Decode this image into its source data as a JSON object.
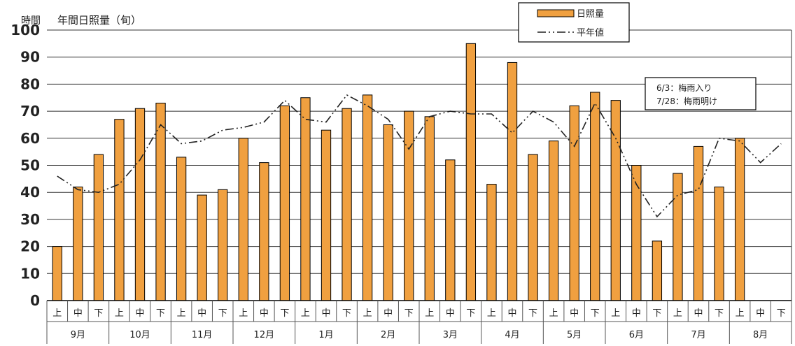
{
  "chart_data": {
    "type": "bar",
    "title": "年間日照量（旬）",
    "ylabel": "時間",
    "ylim": [
      0,
      100
    ],
    "yticks": [
      0,
      10,
      20,
      30,
      40,
      50,
      60,
      70,
      80,
      90,
      100
    ],
    "grid": true,
    "legend_position": "top-right",
    "subcategories": [
      "上",
      "中",
      "下",
      "上",
      "中",
      "下",
      "上",
      "中",
      "下",
      "上",
      "中",
      "下",
      "上",
      "中",
      "下",
      "上",
      "中",
      "下",
      "上",
      "中",
      "下",
      "上",
      "中",
      "下",
      "上",
      "中",
      "下",
      "上",
      "中",
      "下",
      "上",
      "中",
      "下",
      "上",
      "中",
      "下"
    ],
    "months": [
      "9月",
      "10月",
      "11月",
      "12月",
      "1月",
      "2月",
      "3月",
      "4月",
      "5月",
      "6月",
      "7月",
      "8月"
    ],
    "series": [
      {
        "name": "日照量",
        "type": "bar",
        "color": "#F0A040",
        "values": [
          20,
          42,
          54,
          67,
          71,
          73,
          53,
          39,
          41,
          60,
          51,
          72,
          75,
          63,
          71,
          76,
          65,
          70,
          68,
          52,
          95,
          43,
          88,
          54,
          59,
          72,
          77,
          74,
          50,
          22,
          47,
          57,
          42,
          60,
          null,
          null
        ]
      },
      {
        "name": "平年値",
        "type": "line",
        "color": "#222222",
        "values": [
          46,
          41,
          40,
          43,
          52,
          65,
          58,
          59,
          63,
          64,
          66,
          74,
          67,
          66,
          76,
          72,
          67,
          56,
          68,
          70,
          69,
          69,
          62,
          70,
          66,
          57,
          73,
          60,
          43,
          31,
          39,
          41,
          60,
          59,
          51,
          58
        ]
      }
    ],
    "annotation": [
      "6/3：梅雨入り",
      "7/28：梅雨明け"
    ]
  }
}
